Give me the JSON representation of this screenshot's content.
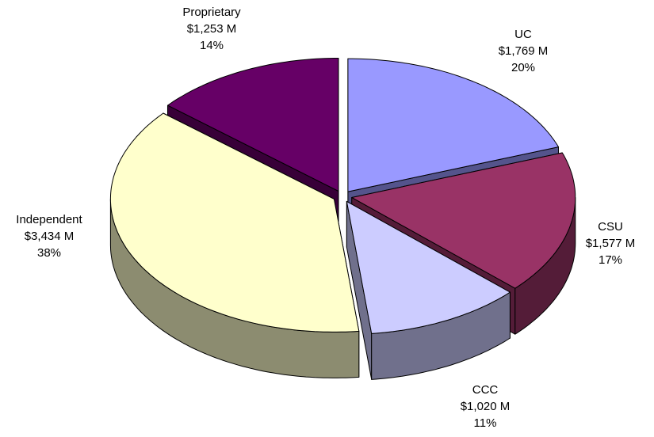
{
  "chart_data": {
    "type": "pie",
    "categories": [
      "UC",
      "CSU",
      "CCC",
      "Independent",
      "Proprietary"
    ],
    "values": [
      1769,
      1577,
      1020,
      3434,
      1253
    ],
    "value_labels": [
      "$1,769 M",
      "$1,577 M",
      "$1,020 M",
      "$3,434 M",
      "$1,253 M"
    ],
    "percent_labels": [
      "20%",
      "17%",
      "11%",
      "38%",
      "14%"
    ],
    "colors": [
      "#9999ff",
      "#993366",
      "#ccccff",
      "#ffffcc",
      "#660066"
    ]
  }
}
